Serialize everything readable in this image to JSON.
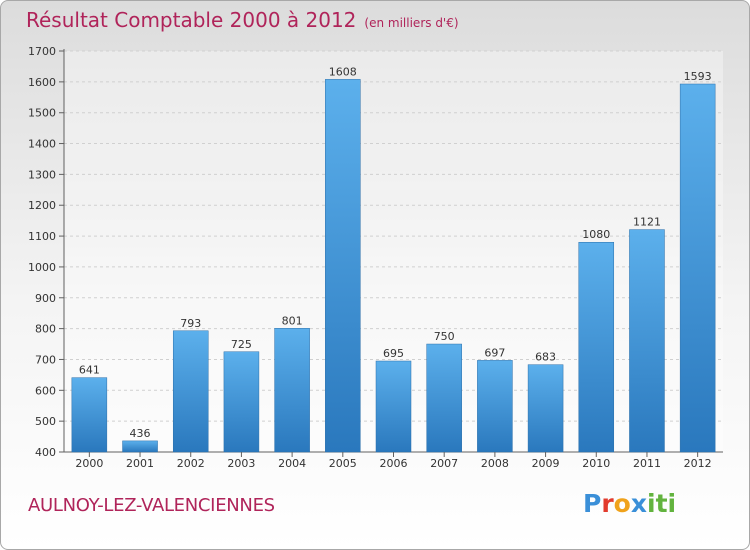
{
  "chart_data": {
    "type": "bar",
    "title": "Résultat Comptable 2000 à 2012",
    "subtitle": "(en milliers d'€)",
    "categories": [
      "2000",
      "2001",
      "2002",
      "2003",
      "2004",
      "2005",
      "2006",
      "2007",
      "2008",
      "2009",
      "2010",
      "2011",
      "2012"
    ],
    "values": [
      641,
      436,
      793,
      725,
      801,
      1608,
      695,
      750,
      697,
      683,
      1080,
      1121,
      1593
    ],
    "ylim": [
      400,
      1700
    ],
    "yticks": [
      400,
      500,
      600,
      700,
      800,
      900,
      1000,
      1100,
      1200,
      1300,
      1400,
      1500,
      1600,
      1700
    ],
    "grid": true,
    "bar_color": "#3d95d8",
    "xlabel": "",
    "ylabel": ""
  },
  "footer": {
    "city": "AULNOY-LEZ-VALENCIENNES",
    "logo": [
      "P",
      "r",
      "o",
      "x",
      "i",
      "ti"
    ]
  },
  "colors": {
    "title": "#b0245a",
    "grid": "#d0d0d0",
    "axis": "#606060"
  }
}
